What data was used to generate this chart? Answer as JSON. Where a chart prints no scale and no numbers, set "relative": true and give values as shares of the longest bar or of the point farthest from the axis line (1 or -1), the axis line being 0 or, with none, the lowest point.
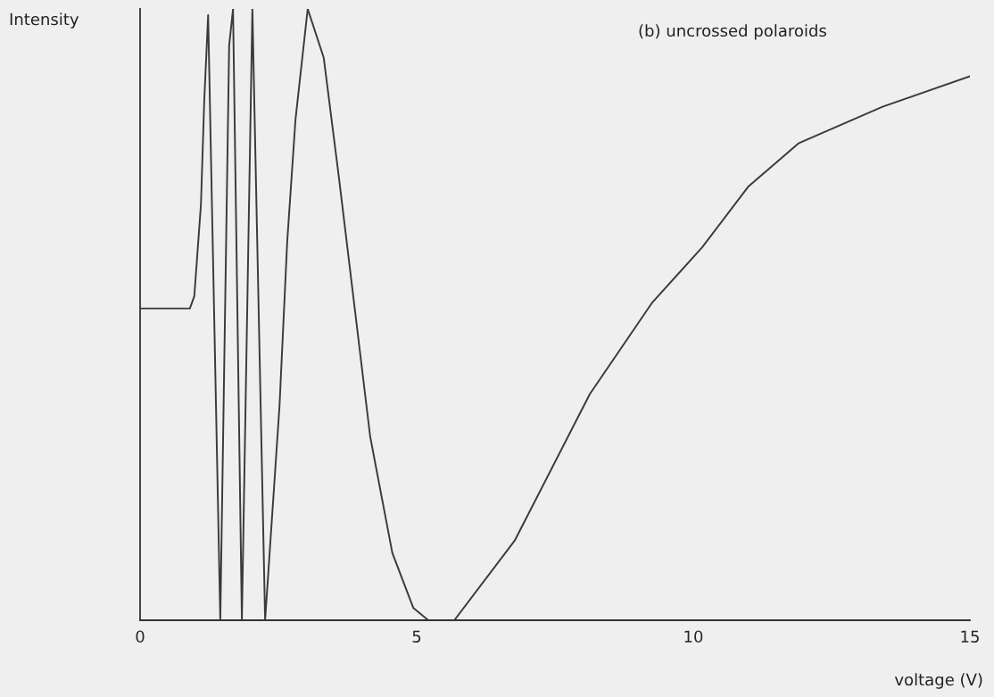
{
  "chart_data": {
    "type": "line",
    "title": "(b) uncrossed polaroids",
    "xlabel": "voltage (V)",
    "ylabel": "Intensity",
    "relative": true,
    "xlim": [
      0,
      15
    ],
    "xticks": [
      0,
      5,
      10,
      15
    ],
    "grid": false,
    "legend": false,
    "marker": "none",
    "line_style": "solid",
    "series": [
      {
        "color": "#3a3a3a",
        "x": [
          0,
          0.9,
          0.98,
          1.1,
          1.16,
          1.23,
          1.45,
          1.61,
          1.68,
          1.84,
          2.03,
          2.26,
          2.52,
          2.66,
          2.81,
          3.03,
          3.32,
          3.6,
          3.84,
          4.16,
          4.56,
          4.94,
          5.21,
          5.48,
          5.68,
          6.77,
          8.13,
          9.26,
          10.16,
          11.0,
          11.9,
          13.42,
          15.0
        ],
        "values": [
          0.51,
          0.51,
          0.53,
          0.68,
          0.85,
          0.99,
          0,
          0.94,
          1.0,
          0,
          1.0,
          0,
          0.35,
          0.62,
          0.82,
          1.0,
          0.92,
          0.72,
          0.54,
          0.3,
          0.11,
          0.02,
          0.0,
          0,
          0.0,
          0.13,
          0.37,
          0.52,
          0.61,
          0.71,
          0.78,
          0.84,
          0.89
        ]
      }
    ]
  }
}
